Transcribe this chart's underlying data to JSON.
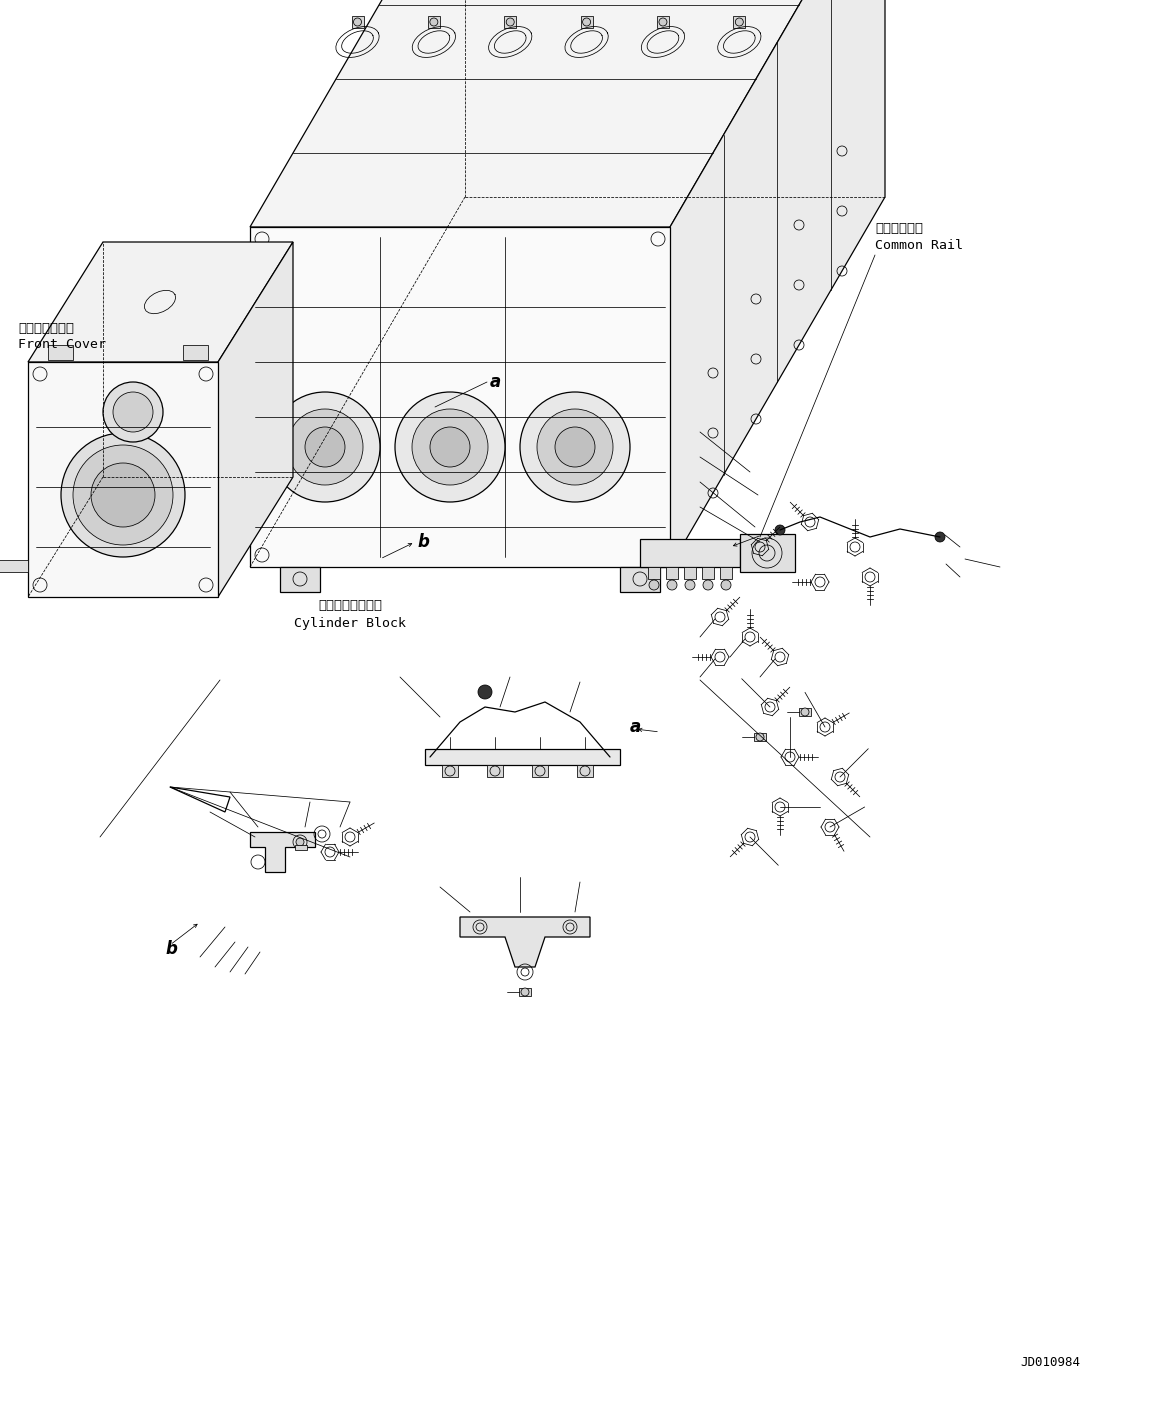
{
  "figure_width": 11.63,
  "figure_height": 14.17,
  "dpi": 100,
  "bg_color": "#ffffff",
  "line_color": "#000000",
  "label_front_cover_jp": "フロントカバー",
  "label_front_cover_en": "Front Cover",
  "label_cylinder_block_jp": "シリンダブロック",
  "label_cylinder_block_en": "Cylinder Block",
  "label_common_rail_jp": "コモンレール",
  "label_common_rail_en": "Common Rail",
  "drawing_id": "JD010984",
  "font_size_label": 9.5,
  "font_size_id": 9,
  "font_size_ref": 12,
  "lw_main": 0.9,
  "lw_thin": 0.55,
  "lw_thick": 1.3
}
